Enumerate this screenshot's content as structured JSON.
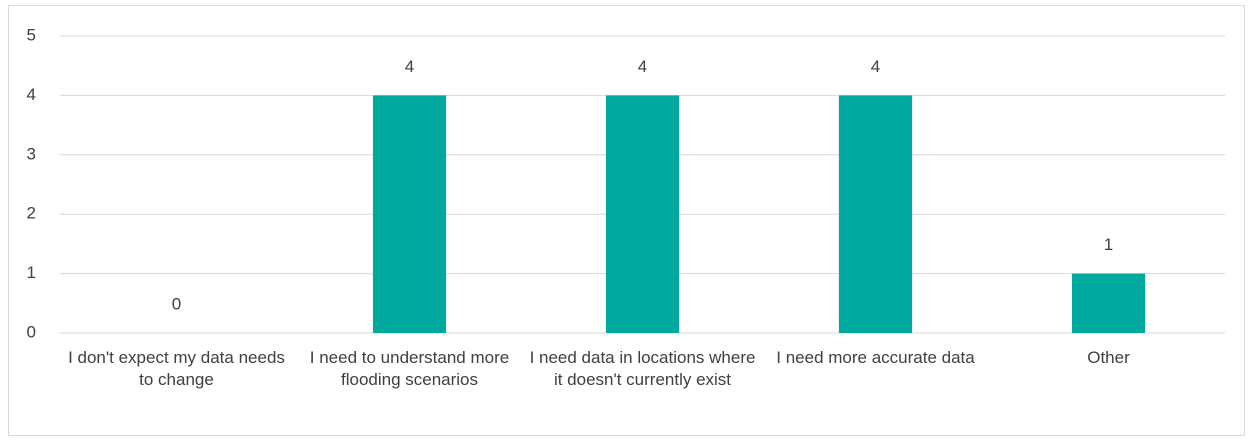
{
  "chart_data": {
    "type": "bar",
    "categories": [
      "I don't expect my data needs to change",
      "I need to understand more flooding scenarios",
      "I need data in locations where it doesn't currently exist",
      "I need more accurate data",
      "Other"
    ],
    "values": [
      0,
      4,
      4,
      4,
      1
    ],
    "color": "#00a99d",
    "ylim": [
      0,
      5
    ],
    "yticks": [
      0,
      1,
      2,
      3,
      4,
      5
    ],
    "grid": true
  }
}
